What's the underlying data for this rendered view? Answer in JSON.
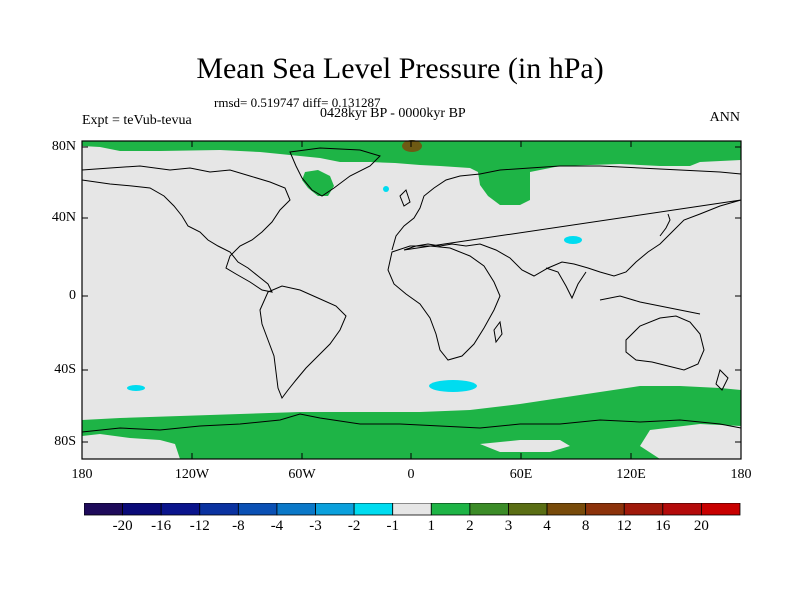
{
  "title": "Mean Sea Level Pressure (in hPa)",
  "stats": "rmsd= 0.519747 diff= 0.131287",
  "period": "0428kyr BP - 0000kyr BP",
  "experiment": "Expt = teVub-tevua",
  "season": "ANN",
  "axes": {
    "y_ticks": [
      "80N",
      "40N",
      "0",
      "40S",
      "80S"
    ],
    "x_ticks": [
      "180",
      "120W",
      "60W",
      "0",
      "60E",
      "120E",
      "180"
    ]
  },
  "colorbar": {
    "labels": [
      "-20",
      "-16",
      "-12",
      "-8",
      "-4",
      "-3",
      "-2",
      "-1",
      "1",
      "2",
      "3",
      "4",
      "8",
      "12",
      "16",
      "20"
    ],
    "colors": [
      "#1e0a5a",
      "#0a0a78",
      "#0a148c",
      "#0a32a0",
      "#0a50b4",
      "#0a78c8",
      "#0aa0dc",
      "#00dcf0",
      "#e6e6e6",
      "#1eb446",
      "#3c8c28",
      "#5a6e14",
      "#784b0a",
      "#8c320a",
      "#a0190a",
      "#b40a0a",
      "#c80000"
    ]
  },
  "map_colors": {
    "background": "#e6e6e6",
    "positive_small": "#1eb446",
    "positive_mid": "#6e5a14",
    "negative_small": "#00dcf0",
    "coast": "#000000"
  }
}
